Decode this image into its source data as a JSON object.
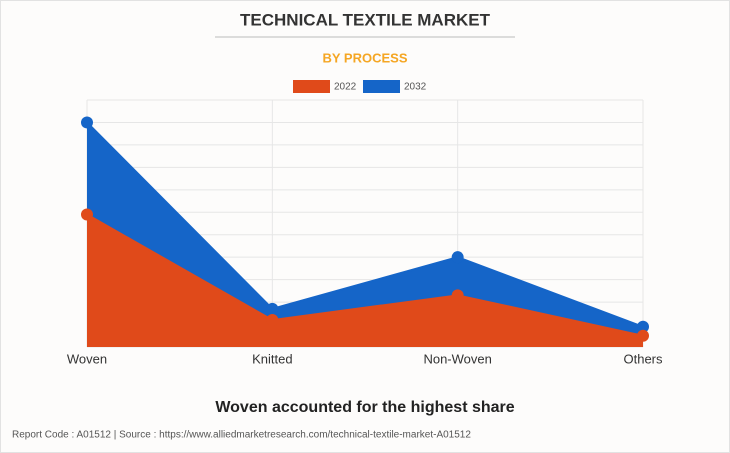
{
  "chart_data": {
    "type": "area",
    "title": "TECHNICAL TEXTILE MARKET",
    "subtitle": "BY PROCESS",
    "categories": [
      "Woven",
      "Knitted",
      "Non-Woven",
      "Others"
    ],
    "series": [
      {
        "name": "2032",
        "color": "#1565c8",
        "values": [
          10.0,
          1.7,
          4.0,
          0.9
        ]
      },
      {
        "name": "2022",
        "color": "#e04a1a",
        "values": [
          5.9,
          1.2,
          2.3,
          0.5
        ]
      }
    ],
    "ylim": [
      0,
      11
    ],
    "yticks": [
      0,
      1,
      2,
      3,
      4,
      5,
      6,
      7,
      8,
      9,
      10,
      11
    ],
    "grid": true,
    "caption": "Woven accounted for the highest share",
    "footer": "Report Code : A01512  |  Source : https://www.alliedmarketresearch.com/technical-textile-market-A01512"
  }
}
